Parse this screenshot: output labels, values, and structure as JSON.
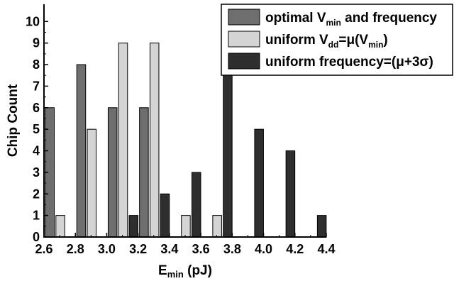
{
  "chart_data": {
    "type": "bar",
    "xlabel": "E",
    "xlabel_sub": "min",
    "xlabel_unit": " (pJ)",
    "ylabel": "Chip Count",
    "xlim": [
      2.6,
      4.4
    ],
    "ylim": [
      0,
      10.8
    ],
    "x_ticks": [
      "2.6",
      "2.8",
      "3.0",
      "3.2",
      "3.4",
      "3.6",
      "3.8",
      "4.0",
      "4.2",
      "4.4"
    ],
    "x_tick_values": [
      2.6,
      2.8,
      3.0,
      3.2,
      3.4,
      3.6,
      3.8,
      4.0,
      4.2,
      4.4
    ],
    "y_ticks": [
      "0",
      "1",
      "2",
      "3",
      "4",
      "5",
      "6",
      "7",
      "8",
      "9",
      "10"
    ],
    "y_tick_values": [
      0,
      1,
      2,
      3,
      4,
      5,
      6,
      7,
      8,
      9,
      10
    ],
    "bin_centers": [
      2.7,
      2.9,
      3.1,
      3.3,
      3.5,
      3.7,
      3.9,
      4.1,
      4.3
    ],
    "grid": false,
    "legend_position": "top-right",
    "series": [
      {
        "name": "optimal V_min and frequency",
        "color": "#6e6e6e",
        "values": [
          6,
          8,
          6,
          6,
          0,
          0,
          0,
          0,
          0
        ]
      },
      {
        "name": "uniform V_dd=μ(V_min)",
        "color": "#d4d4d4",
        "values": [
          1,
          5,
          9,
          9,
          1,
          1,
          0,
          0,
          0
        ]
      },
      {
        "name": "uniform frequency=(μ+3σ)",
        "color": "#2e2e2e",
        "values": [
          0,
          0,
          1,
          2,
          3,
          10,
          5,
          4,
          1
        ]
      }
    ]
  },
  "legend": [
    {
      "parts": [
        {
          "t": "optimal V"
        },
        {
          "t": "min",
          "sub": true
        },
        {
          "t": " and frequency"
        }
      ]
    },
    {
      "parts": [
        {
          "t": "uniform V"
        },
        {
          "t": "dd",
          "sub": true
        },
        {
          "t": "=μ(V"
        },
        {
          "t": "min",
          "sub": true
        },
        {
          "t": ")"
        }
      ]
    },
    {
      "parts": [
        {
          "t": "uniform frequency=(μ+3σ)"
        }
      ]
    }
  ]
}
